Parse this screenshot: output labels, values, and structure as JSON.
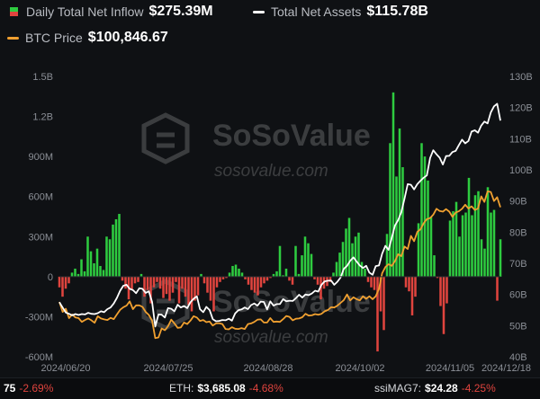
{
  "legend": {
    "inflow": {
      "label": "Daily Total Net Inflow",
      "value": "$275.39M",
      "color_pos": "#2ecc40",
      "color_neg": "#e0443e"
    },
    "assets": {
      "label": "Total Net Assets",
      "value": "$115.78B",
      "color": "#ffffff"
    },
    "btc": {
      "label": "BTC Price",
      "value": "$100,846.67",
      "color": "#f0a030"
    }
  },
  "watermark": {
    "text_large": "SoSoValue",
    "text_small": "sosovalue.com"
  },
  "ticker": [
    {
      "name": "",
      "price": "75",
      "change": "-2.69%"
    },
    {
      "name": "ETH:",
      "price": "$3,685.08",
      "change": "-4.68%"
    },
    {
      "name": "ssiMAG7:",
      "price": "$24.28",
      "change": "-4.25%"
    }
  ],
  "chart_data": {
    "type": "bar",
    "x_ticks": [
      "2024/06/20",
      "2024/07/25",
      "2024/08/28",
      "2024/10/02",
      "2024/11/05",
      "2024/12/18"
    ],
    "y_left": {
      "ticks": [
        "1.5B",
        "1.2B",
        "900M",
        "600M",
        "300M",
        "0",
        "-300M",
        "-600M"
      ],
      "range": [
        -600,
        1500
      ]
    },
    "y_right": {
      "ticks": [
        "130B",
        "120B",
        "110B",
        "100B",
        "90B",
        "80B",
        "70B",
        "60B",
        "50B",
        "40B"
      ],
      "range": [
        40,
        130
      ]
    },
    "grid": false,
    "series": [
      {
        "name": "Daily Total Net Inflow",
        "type": "bar",
        "unit": "M USD",
        "values": [
          -80,
          -150,
          -90,
          -50,
          30,
          60,
          20,
          130,
          40,
          300,
          190,
          100,
          210,
          80,
          50,
          300,
          280,
          390,
          430,
          470,
          -30,
          -90,
          -170,
          -100,
          -50,
          -40,
          20,
          -150,
          -100,
          -200,
          -80,
          -40,
          -90,
          -160,
          -130,
          -180,
          -120,
          -40,
          -200,
          -90,
          -150,
          -210,
          -260,
          -180,
          -140,
          20,
          -50,
          -120,
          -180,
          -260,
          -80,
          -40,
          -20,
          -10,
          30,
          80,
          90,
          60,
          30,
          -20,
          -60,
          -100,
          -120,
          -140,
          -80,
          -50,
          -30,
          -10,
          20,
          40,
          230,
          10,
          60,
          -30,
          -60,
          230,
          20,
          160,
          300,
          250,
          170,
          -20,
          -60,
          -170,
          -90,
          -70,
          -40,
          30,
          110,
          180,
          260,
          360,
          440,
          250,
          300,
          330,
          110,
          60,
          -40,
          -80,
          -100,
          -560,
          -260,
          -400,
          320,
          1000,
          1380,
          750,
          1110,
          820,
          -80,
          -110,
          -290,
          -150,
          400,
          1000,
          900,
          720,
          450,
          160,
          -10,
          -220,
          -430,
          -200,
          420,
          490,
          560,
          300,
          460,
          480,
          740,
          460,
          610,
          640,
          280,
          210,
          670,
          480,
          500,
          -180,
          280
        ]
      },
      {
        "name": "Total Net Assets",
        "type": "line",
        "unit": "B USD",
        "axis": "right",
        "values": [
          57.5,
          55.8,
          54.2,
          53.8,
          53.3,
          53.7,
          53.4,
          53.7,
          53.6,
          54.1,
          53.8,
          53.7,
          54.0,
          54.6,
          54.3,
          55.3,
          55.8,
          57.1,
          58.9,
          61.2,
          62.8,
          63.1,
          61.8,
          61.4,
          60.4,
          62.0,
          61.8,
          60.5,
          61.0,
          57.6,
          49.7,
          53.6,
          53.5,
          52.6,
          55.6,
          55.4,
          54.6,
          56.7,
          55.8,
          56.3,
          55.6,
          57.5,
          58.6,
          59.4,
          55.3,
          54.3,
          56.0,
          55.0,
          52.1,
          51.4,
          51.5,
          51.8,
          51.7,
          52.2,
          51.6,
          53.9,
          54.9,
          55.2,
          55.8,
          55.3,
          56.6,
          57.1,
          56.4,
          57.7,
          57.6,
          55.2,
          57.8,
          56.4,
          56.9,
          56.9,
          58.5,
          57.8,
          58.0,
          57.9,
          58.8,
          59.9,
          59.0,
          60.0,
          59.8,
          60.3,
          61.2,
          60.9,
          63.1,
          64.2,
          64.4,
          64.5,
          63.1,
          64.1,
          65.5,
          68.2,
          69.2,
          70.8,
          71.9,
          70.6,
          69.3,
          68.5,
          69.2,
          67.0,
          66.3,
          69.1,
          69.3,
          73.1,
          75.6,
          74.3,
          78.2,
          82.1,
          83.9,
          86.4,
          90.8,
          95.4,
          95.2,
          93.7,
          95.4,
          96.5,
          97.5,
          98.2,
          103.8,
          106.3,
          105.0,
          103.9,
          101.7,
          104.4,
          104.5,
          105.7,
          106.1,
          107.9,
          109.7,
          108.5,
          109.3,
          112.3,
          112.7,
          111.9,
          114.2,
          115.5,
          114.9,
          118.4,
          120.4,
          121.2,
          115.8
        ]
      },
      {
        "name": "BTC Price",
        "type": "line",
        "unit": "K USD",
        "axis": "right",
        "values": [
          57.6,
          54.4,
          55.4,
          52.4,
          53.6,
          52.6,
          52.4,
          51.2,
          51.8,
          52.3,
          51.7,
          50.9,
          53.0,
          52.3,
          52.0,
          51.8,
          52.5,
          52.1,
          53.6,
          55.1,
          55.9,
          56.4,
          57.8,
          55.3,
          56.5,
          56.5,
          56.0,
          54.4,
          53.4,
          51.6,
          46.0,
          46.2,
          49.1,
          48.5,
          49.8,
          51.9,
          50.7,
          49.3,
          49.4,
          51.0,
          50.5,
          51.6,
          53.0,
          52.6,
          51.5,
          51.8,
          51.1,
          51.3,
          50.0,
          50.7,
          50.8,
          50.5,
          48.9,
          48.8,
          49.5,
          49.0,
          48.9,
          49.2,
          48.9,
          50.5,
          50.7,
          51.2,
          51.9,
          52.0,
          51.0,
          51.0,
          52.4,
          51.2,
          51.3,
          51.2,
          52.1,
          53.1,
          52.8,
          51.7,
          52.2,
          52.3,
          52.7,
          53.8,
          53.2,
          53.3,
          53.7,
          53.5,
          53.8,
          54.6,
          55.0,
          55.9,
          55.8,
          56.4,
          57.3,
          58.2,
          60.0,
          58.1,
          59.1,
          58.5,
          58.1,
          59.4,
          58.6,
          59.4,
          58.5,
          59.4,
          61.8,
          66.8,
          68.8,
          69.7,
          69.2,
          70.7,
          72.9,
          72.3,
          75.4,
          74.6,
          78.8,
          77.1,
          80.1,
          80.9,
          82.9,
          84.2,
          84.5,
          85.6,
          87.5,
          86.8,
          86.6,
          87.4,
          86.6,
          84.9,
          86.3,
          86.7,
          87.5,
          88.8,
          87.6,
          88.3,
          87.1,
          87.6,
          91.5,
          89.7,
          93.1,
          92.9,
          90.0,
          91.2,
          88.0
        ]
      }
    ]
  }
}
